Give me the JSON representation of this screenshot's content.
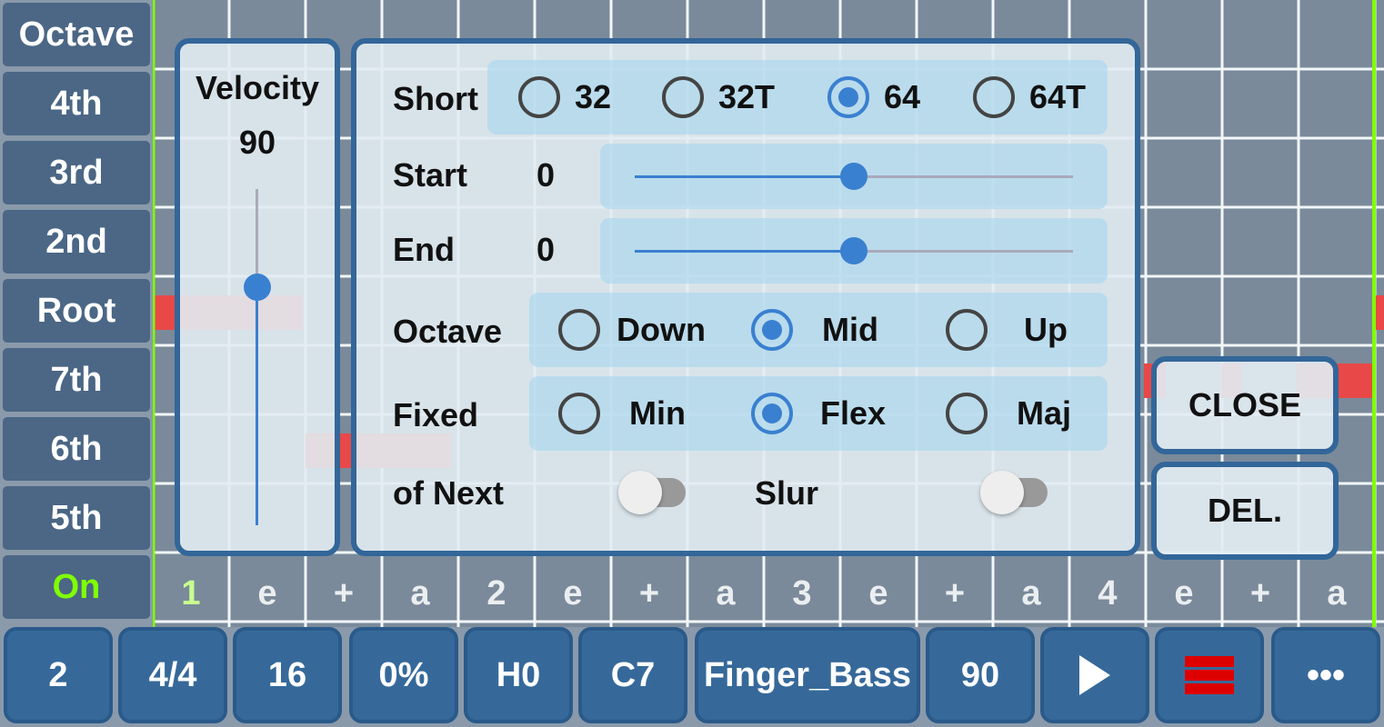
{
  "left_column": [
    {
      "label": "Octave"
    },
    {
      "label": "4th"
    },
    {
      "label": "3rd"
    },
    {
      "label": "2nd"
    },
    {
      "label": "Root"
    },
    {
      "label": "7th"
    },
    {
      "label": "6th"
    },
    {
      "label": "5th"
    },
    {
      "label": "On",
      "color": "#7fff00"
    }
  ],
  "beats": [
    "1",
    "e",
    "+",
    "a",
    "2",
    "e",
    "+",
    "a",
    "3",
    "e",
    "+",
    "a",
    "4",
    "e",
    "+",
    "a"
  ],
  "bottom_bar": {
    "bars": "2",
    "time_signature": "4/4",
    "resolution": "16",
    "swing": "0%",
    "humanize": "H0",
    "chord": "C7",
    "instrument": "Finger_Bass",
    "velocity": "90",
    "play_icon": "play-icon",
    "list_icon": "list-icon",
    "more_icon": "more-icon"
  },
  "velocity_panel": {
    "title": "Velocity",
    "value": "90",
    "level": 90,
    "max": 127
  },
  "note_panel": {
    "short": {
      "label": "Short",
      "options": [
        "32",
        "32T",
        "64",
        "64T"
      ],
      "selected": "64"
    },
    "start": {
      "label": "Start",
      "value": "0",
      "slider_percent": 50
    },
    "end": {
      "label": "End",
      "value": "0",
      "slider_percent": 50
    },
    "octave": {
      "label": "Octave",
      "options": [
        "Down",
        "Mid",
        "Up"
      ],
      "selected": "Mid"
    },
    "fixed": {
      "label": "Fixed",
      "options": [
        "Min",
        "Flex",
        "Maj"
      ],
      "selected": "Flex"
    },
    "of_next": {
      "label": "of Next",
      "on": false
    },
    "slur": {
      "label": "Slur",
      "on": false
    }
  },
  "buttons": {
    "delete": "DEL.",
    "close": "CLOSE"
  },
  "colors": {
    "accent": "#3a80d0",
    "panel_border": "#336699",
    "button": "#36699a",
    "note": "#e84848",
    "playhead": "#7fff00"
  }
}
